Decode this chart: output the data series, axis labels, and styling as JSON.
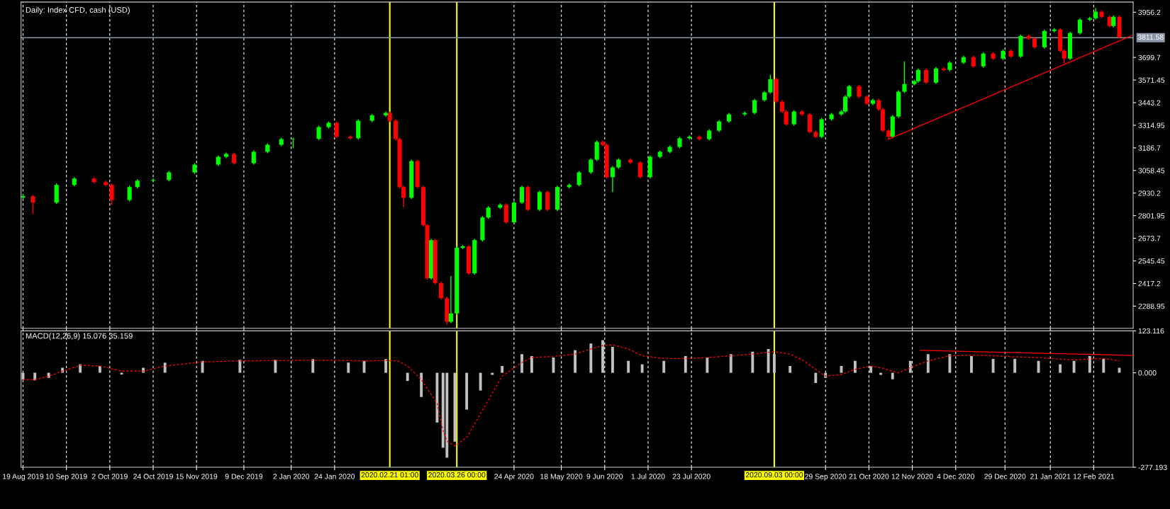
{
  "chart_data": [
    {
      "type": "candlestick",
      "title": "Daily: Index CFD, cash (USD)",
      "x": [
        "2019-08-19",
        "2019-08-24",
        "2019-09-05",
        "2019-09-14",
        "2019-09-24",
        "2019-09-30",
        "2019-10-03",
        "2019-10-12",
        "2019-10-16",
        "2019-10-24",
        "2019-11-01",
        "2019-11-14",
        "2019-11-26",
        "2019-11-30",
        "2019-12-04",
        "2019-12-14",
        "2019-12-21",
        "2019-12-28",
        "2020-01-03",
        "2020-01-16",
        "2020-01-21",
        "2020-01-25",
        "2020-02-01",
        "2020-02-05",
        "2020-02-12",
        "2020-02-19",
        "2020-02-21",
        "2020-02-24",
        "2020-02-26",
        "2020-02-28",
        "2020-03-03",
        "2020-03-06",
        "2020-03-09",
        "2020-03-11",
        "2020-03-13",
        "2020-03-15",
        "2020-03-18",
        "2020-03-21",
        "2020-03-23",
        "2020-03-26",
        "2020-03-29",
        "2020-04-01",
        "2020-04-04",
        "2020-04-08",
        "2020-04-11",
        "2020-04-17",
        "2020-04-20",
        "2020-04-24",
        "2020-04-28",
        "2020-05-01",
        "2020-05-07",
        "2020-05-11",
        "2020-05-16",
        "2020-05-22",
        "2020-05-27",
        "2020-06-02",
        "2020-06-05",
        "2020-06-08",
        "2020-06-10",
        "2020-06-13",
        "2020-06-16",
        "2020-06-22",
        "2020-06-27",
        "2020-07-02",
        "2020-07-07",
        "2020-07-12",
        "2020-07-17",
        "2020-07-22",
        "2020-07-27",
        "2020-08-01",
        "2020-08-06",
        "2020-08-11",
        "2020-08-19",
        "2020-08-24",
        "2020-08-29",
        "2020-09-01",
        "2020-09-04",
        "2020-09-07",
        "2020-09-09",
        "2020-09-13",
        "2020-09-17",
        "2020-09-21",
        "2020-09-24",
        "2020-09-27",
        "2020-10-02",
        "2020-10-07",
        "2020-10-09",
        "2020-10-11",
        "2020-10-16",
        "2020-10-20",
        "2020-10-23",
        "2020-10-26",
        "2020-10-28",
        "2020-10-31",
        "2020-11-02",
        "2020-11-05",
        "2020-11-08",
        "2020-11-13",
        "2020-11-15",
        "2020-11-19",
        "2020-11-24",
        "2020-11-28",
        "2020-12-01",
        "2020-12-08",
        "2020-12-13",
        "2020-12-18",
        "2020-12-23",
        "2020-12-28",
        "2021-01-01",
        "2021-01-06",
        "2021-01-10",
        "2021-01-13",
        "2021-01-18",
        "2021-01-23",
        "2021-01-26",
        "2021-01-28",
        "2021-01-31",
        "2021-02-05",
        "2021-02-10",
        "2021-02-13",
        "2021-02-16",
        "2021-02-20",
        "2021-02-22",
        "2021-02-25"
      ],
      "ohlc": [
        [
          2905,
          2925,
          2895,
          2912
        ],
        [
          2912,
          2920,
          2812,
          2876
        ],
        [
          2876,
          2985,
          2868,
          2976
        ],
        [
          2976,
          3020,
          2968,
          3012
        ],
        [
          3012,
          3020,
          2984,
          2992
        ],
        [
          2992,
          3000,
          2968,
          2976
        ],
        [
          2976,
          2984,
          2862,
          2891
        ],
        [
          2891,
          2972,
          2883,
          2964
        ],
        [
          2964,
          3008,
          2956,
          3000
        ],
        [
          3000,
          3012,
          2992,
          3004
        ],
        [
          3004,
          3056,
          2996,
          3048
        ],
        [
          3048,
          3100,
          3040,
          3092
        ],
        [
          3092,
          3144,
          3084,
          3136
        ],
        [
          3136,
          3160,
          3128,
          3152
        ],
        [
          3152,
          3160,
          3092,
          3100
        ],
        [
          3100,
          3172,
          3092,
          3164
        ],
        [
          3164,
          3212,
          3156,
          3204
        ],
        [
          3204,
          3244,
          3196,
          3236
        ],
        [
          3236,
          3244,
          3185,
          3238
        ],
        [
          3238,
          3313,
          3230,
          3305
        ],
        [
          3305,
          3337,
          3297,
          3329
        ],
        [
          3329,
          3337,
          3241,
          3249
        ],
        [
          3249,
          3257,
          3233,
          3241
        ],
        [
          3241,
          3349,
          3233,
          3341
        ],
        [
          3341,
          3379,
          3333,
          3371
        ],
        [
          3371,
          3393,
          3363,
          3385
        ],
        [
          3385,
          3393,
          3333,
          3341
        ],
        [
          3341,
          3349,
          3228,
          3236
        ],
        [
          3236,
          3244,
          2956,
          2964
        ],
        [
          2964,
          2972,
          2850,
          2904
        ],
        [
          2904,
          3120,
          2896,
          3112
        ],
        [
          3112,
          3120,
          2956,
          2964
        ],
        [
          2964,
          2972,
          2740,
          2748
        ],
        [
          2748,
          2756,
          2439,
          2447
        ],
        [
          2447,
          2671,
          2439,
          2663
        ],
        [
          2663,
          2671,
          2412,
          2420
        ],
        [
          2420,
          2428,
          2326,
          2334
        ],
        [
          2334,
          2342,
          2185,
          2200
        ],
        [
          2200,
          2460,
          2192,
          2247
        ],
        [
          2247,
          2628,
          2239,
          2620
        ],
        [
          2620,
          2636,
          2612,
          2628
        ],
        [
          2628,
          2636,
          2467,
          2475
        ],
        [
          2475,
          2671,
          2467,
          2663
        ],
        [
          2663,
          2800,
          2655,
          2792
        ],
        [
          2792,
          2856,
          2784,
          2848
        ],
        [
          2848,
          2872,
          2840,
          2864
        ],
        [
          2864,
          2872,
          2756,
          2764
        ],
        [
          2764,
          2884,
          2756,
          2876
        ],
        [
          2876,
          2972,
          2868,
          2964
        ],
        [
          2964,
          2972,
          2828,
          2836
        ],
        [
          2836,
          2944,
          2828,
          2936
        ],
        [
          2936,
          2944,
          2828,
          2836
        ],
        [
          2836,
          2972,
          2828,
          2964
        ],
        [
          2964,
          2984,
          2956,
          2976
        ],
        [
          2976,
          3056,
          2968,
          3048
        ],
        [
          3048,
          3128,
          3040,
          3120
        ],
        [
          3120,
          3228,
          3112,
          3220
        ],
        [
          3220,
          3228,
          3196,
          3204
        ],
        [
          3204,
          3212,
          3012,
          3020
        ],
        [
          3020,
          3084,
          2936,
          3076
        ],
        [
          3076,
          3128,
          3068,
          3120
        ],
        [
          3120,
          3128,
          3096,
          3104
        ],
        [
          3104,
          3112,
          3012,
          3020
        ],
        [
          3020,
          3144,
          3012,
          3136
        ],
        [
          3136,
          3172,
          3128,
          3164
        ],
        [
          3164,
          3200,
          3156,
          3192
        ],
        [
          3192,
          3249,
          3184,
          3241
        ],
        [
          3241,
          3257,
          3233,
          3249
        ],
        [
          3249,
          3257,
          3228,
          3236
        ],
        [
          3236,
          3293,
          3228,
          3285
        ],
        [
          3285,
          3345,
          3277,
          3337
        ],
        [
          3337,
          3385,
          3329,
          3377
        ],
        [
          3377,
          3393,
          3369,
          3385
        ],
        [
          3385,
          3465,
          3377,
          3457
        ],
        [
          3457,
          3509,
          3449,
          3501
        ],
        [
          3501,
          3601,
          3493,
          3577
        ],
        [
          3577,
          3585,
          3441,
          3449
        ],
        [
          3449,
          3457,
          3385,
          3393
        ],
        [
          3393,
          3401,
          3313,
          3321
        ],
        [
          3321,
          3401,
          3313,
          3393
        ],
        [
          3393,
          3401,
          3369,
          3377
        ],
        [
          3377,
          3385,
          3269,
          3277
        ],
        [
          3277,
          3285,
          3241,
          3249
        ],
        [
          3249,
          3357,
          3241,
          3349
        ],
        [
          3349,
          3385,
          3341,
          3377
        ],
        [
          3377,
          3401,
          3369,
          3393
        ],
        [
          3393,
          3485,
          3385,
          3477
        ],
        [
          3477,
          3545,
          3469,
          3537
        ],
        [
          3537,
          3545,
          3469,
          3477
        ],
        [
          3477,
          3485,
          3429,
          3437
        ],
        [
          3437,
          3465,
          3429,
          3457
        ],
        [
          3457,
          3465,
          3397,
          3405
        ],
        [
          3405,
          3413,
          3277,
          3285
        ],
        [
          3285,
          3293,
          3236,
          3249
        ],
        [
          3249,
          3373,
          3241,
          3365
        ],
        [
          3365,
          3513,
          3357,
          3505
        ],
        [
          3505,
          3677,
          3497,
          3549
        ],
        [
          3549,
          3573,
          3541,
          3565
        ],
        [
          3565,
          3637,
          3557,
          3629
        ],
        [
          3629,
          3637,
          3549,
          3557
        ],
        [
          3557,
          3645,
          3549,
          3637
        ],
        [
          3637,
          3645,
          3621,
          3629
        ],
        [
          3629,
          3678,
          3621,
          3670
        ],
        [
          3670,
          3709,
          3662,
          3701
        ],
        [
          3701,
          3709,
          3641,
          3649
        ],
        [
          3649,
          3729,
          3641,
          3721
        ],
        [
          3721,
          3729,
          3685,
          3693
        ],
        [
          3693,
          3745,
          3685,
          3737
        ],
        [
          3737,
          3745,
          3697,
          3705
        ],
        [
          3705,
          3830,
          3697,
          3822
        ],
        [
          3822,
          3830,
          3799,
          3807
        ],
        [
          3807,
          3815,
          3749,
          3757
        ],
        [
          3757,
          3858,
          3749,
          3850
        ],
        [
          3850,
          3866,
          3842,
          3858
        ],
        [
          3858,
          3866,
          3729,
          3737
        ],
        [
          3737,
          3745,
          3665,
          3693
        ],
        [
          3693,
          3846,
          3685,
          3838
        ],
        [
          3838,
          3922,
          3830,
          3914
        ],
        [
          3914,
          3930,
          3906,
          3922
        ],
        [
          3922,
          3980,
          3914,
          3958
        ],
        [
          3958,
          3966,
          3922,
          3930
        ],
        [
          3930,
          3938,
          3870,
          3878
        ],
        [
          3878,
          3938,
          3870,
          3930
        ],
        [
          3930,
          3938,
          3806,
          3814
        ]
      ],
      "colors": [
        "#00ff00",
        "#ff0000",
        "#00ff00",
        "#00ff00",
        "#ff0000",
        "#ff0000",
        "#ff0000",
        "#00ff00",
        "#00ff00",
        "#00ff00",
        "#00ff00",
        "#00ff00",
        "#00ff00",
        "#00ff00",
        "#ff0000",
        "#00ff00",
        "#00ff00",
        "#00ff00",
        "#00ff00",
        "#00ff00",
        "#00ff00",
        "#ff0000",
        "#ff0000",
        "#00ff00",
        "#00ff00",
        "#00ff00",
        "#ff0000",
        "#ff0000",
        "#ff0000",
        "#ff0000",
        "#00ff00",
        "#ff0000",
        "#ff0000",
        "#ff0000",
        "#00ff00",
        "#ff0000",
        "#ff0000",
        "#ff0000",
        "#00ff00",
        "#00ff00",
        "#00ff00",
        "#ff0000",
        "#00ff00",
        "#00ff00",
        "#00ff00",
        "#00ff00",
        "#ff0000",
        "#00ff00",
        "#00ff00",
        "#ff0000",
        "#00ff00",
        "#ff0000",
        "#00ff00",
        "#00ff00",
        "#00ff00",
        "#00ff00",
        "#00ff00",
        "#ff0000",
        "#ff0000",
        "#00ff00",
        "#00ff00",
        "#ff0000",
        "#ff0000",
        "#00ff00",
        "#00ff00",
        "#00ff00",
        "#00ff00",
        "#00ff00",
        "#ff0000",
        "#00ff00",
        "#00ff00",
        "#00ff00",
        "#00ff00",
        "#00ff00",
        "#00ff00",
        "#00ff00",
        "#ff0000",
        "#ff0000",
        "#ff0000",
        "#00ff00",
        "#ff0000",
        "#ff0000",
        "#ff0000",
        "#00ff00",
        "#00ff00",
        "#00ff00",
        "#00ff00",
        "#00ff00",
        "#ff0000",
        "#ff0000",
        "#00ff00",
        "#ff0000",
        "#ff0000",
        "#ff0000",
        "#00ff00",
        "#00ff00",
        "#00ff00",
        "#00ff00",
        "#00ff00",
        "#ff0000",
        "#00ff00",
        "#ff0000",
        "#00ff00",
        "#00ff00",
        "#ff0000",
        "#00ff00",
        "#ff0000",
        "#00ff00",
        "#ff0000",
        "#00ff00",
        "#ff0000",
        "#ff0000",
        "#00ff00",
        "#00ff00",
        "#ff0000",
        "#ff0000",
        "#00ff00",
        "#00ff00",
        "#00ff00",
        "#00ff00",
        "#ff0000",
        "#ff0000",
        "#00ff00",
        "#ff0000"
      ],
      "series": [
        {
          "type": "line",
          "color": "#ff0000",
          "line_style": "solid",
          "x": [
            "2020-10-31",
            "2021-03-03"
          ],
          "values": [
            3236,
            3822
          ]
        }
      ],
      "xlim": [
        "2019-08-18",
        "2021-03-04"
      ],
      "ylim": [
        2163,
        4014
      ],
      "yticks": [
        2288.95,
        2417.2,
        2545.45,
        2673.7,
        2801.95,
        2930.2,
        3058.45,
        3186.7,
        3314.95,
        3443.2,
        3571.45,
        3699.7,
        3956.2
      ],
      "xticks": [
        "2019-08-19",
        "2019-09-10",
        "2019-10-02",
        "2019-10-24",
        "2019-11-15",
        "2019-12-09",
        "2020-01-02",
        "2020-01-24",
        "2020-04-24",
        "2020-05-18",
        "2020-06-09",
        "2020-07-01",
        "2020-07-23",
        "2020-09-29",
        "2020-10-21",
        "2020-11-12",
        "2020-12-04",
        "2020-12-29",
        "2021-01-21",
        "2021-02-12"
      ],
      "tick_labels": "y",
      "grid": "x",
      "ref_lines": [
        {
          "axis": "x",
          "value": "2020-02-21",
          "color": "#ffff00"
        },
        {
          "axis": "x",
          "value": "2020-03-26",
          "color": "#ffff00"
        },
        {
          "axis": "x",
          "value": "2020-09-03",
          "color": "#ffff00"
        },
        {
          "axis": "y",
          "value": 3811.58,
          "label": "3811.58",
          "color": "#8a96a8"
        }
      ]
    },
    {
      "type": "bar",
      "title": "MACD(12,26,9) 15.076 35.159",
      "x": [
        "2019-08-19",
        "2019-08-25",
        "2019-09-01",
        "2019-09-08",
        "2019-09-17",
        "2019-09-27",
        "2019-10-08",
        "2019-10-19",
        "2019-10-30",
        "2019-11-18",
        "2019-12-07",
        "2019-12-25",
        "2020-01-13",
        "2020-01-31",
        "2020-02-08",
        "2020-02-19",
        "2020-02-25",
        "2020-03-01",
        "2020-03-08",
        "2020-03-16",
        "2020-03-19",
        "2020-03-21",
        "2020-03-25",
        "2020-03-31",
        "2020-04-07",
        "2020-04-13",
        "2020-04-18",
        "2020-04-28",
        "2020-05-03",
        "2020-05-14",
        "2020-05-25",
        "2020-06-02",
        "2020-06-08",
        "2020-06-13",
        "2020-06-21",
        "2020-06-28",
        "2020-07-09",
        "2020-07-20",
        "2020-07-31",
        "2020-08-12",
        "2020-08-23",
        "2020-08-31",
        "2020-09-03",
        "2020-09-11",
        "2020-09-18",
        "2020-09-24",
        "2020-09-29",
        "2020-10-07",
        "2020-10-14",
        "2020-10-22",
        "2020-10-27",
        "2020-11-02",
        "2020-11-05",
        "2020-11-11",
        "2020-11-20",
        "2020-12-01",
        "2020-12-12",
        "2020-12-23",
        "2021-01-03",
        "2021-01-15",
        "2021-01-26",
        "2021-02-02",
        "2021-02-10",
        "2021-02-17",
        "2021-02-25"
      ],
      "series": [
        {
          "type": "bar",
          "color": "#c0c0c0",
          "values": [
            -20,
            -22,
            -15,
            15,
            25,
            20,
            -5,
            15,
            30,
            35,
            38,
            38,
            40,
            30,
            35,
            40,
            0,
            -24,
            -71,
            -146,
            -220,
            -249,
            -202,
            -108,
            -52,
            -6,
            20,
            55,
            49,
            45,
            66,
            86,
            96,
            76,
            35,
            25,
            35,
            49,
            45,
            55,
            62,
            70,
            55,
            20,
            0,
            -30,
            -15,
            20,
            35,
            20,
            -6,
            -19,
            0,
            35,
            55,
            55,
            49,
            41,
            41,
            35,
            25,
            35,
            49,
            41,
            15
          ]
        },
        {
          "type": "line",
          "color": "#ff0000",
          "line_style": "dashed",
          "values": [
            -20,
            -20,
            -10,
            5,
            22,
            20,
            5,
            5,
            20,
            32,
            35,
            36,
            37,
            36,
            35,
            36,
            35,
            20,
            -20,
            -90,
            -170,
            -200,
            -215,
            -190,
            -120,
            -60,
            -10,
            30,
            45,
            48,
            55,
            70,
            80,
            82,
            70,
            50,
            42,
            42,
            45,
            50,
            55,
            60,
            62,
            55,
            35,
            10,
            -10,
            -5,
            10,
            20,
            15,
            5,
            0,
            15,
            35,
            50,
            52,
            50,
            47,
            45,
            40,
            38,
            40,
            42,
            35
          ]
        },
        {
          "type": "line",
          "color": "#ff0000",
          "line_style": "solid",
          "x": [
            "2020-11-16",
            "2021-03-04"
          ],
          "values": [
            66,
            51
          ]
        }
      ],
      "xlim": [
        "2019-08-18",
        "2021-03-04"
      ],
      "ylim": [
        -277.193,
        123.116
      ],
      "yticks": [
        {
          "value": -277.193,
          "label": "-277.193"
        },
        {
          "value": 0,
          "label": "0.000"
        },
        {
          "value": 123.116,
          "label": "123.116"
        }
      ],
      "xticks": [
        {
          "value": "2019-08-19",
          "label": "19 Aug 2019"
        },
        {
          "value": "2019-09-10",
          "label": "10 Sep 2019"
        },
        {
          "value": "2019-10-02",
          "label": "2 Oct 2019"
        },
        {
          "value": "2019-10-24",
          "label": "24 Oct 2019"
        },
        {
          "value": "2019-11-15",
          "label": "15 Nov 2019"
        },
        {
          "value": "2019-12-09",
          "label": "9 Dec 2019"
        },
        {
          "value": "2020-01-02",
          "label": "2 Jan 2020"
        },
        {
          "value": "2020-01-24",
          "label": "24 Jan 2020"
        },
        {
          "value": "2020-04-24",
          "label": "24 Apr 2020"
        },
        {
          "value": "2020-05-18",
          "label": "18 May 2020"
        },
        {
          "value": "2020-06-09",
          "label": "9 Jun 2020"
        },
        {
          "value": "2020-07-01",
          "label": "1 Jul 2020"
        },
        {
          "value": "2020-07-23",
          "label": "23 Jul 2020"
        },
        {
          "value": "2020-09-29",
          "label": "29 Sep 2020"
        },
        {
          "value": "2020-10-21",
          "label": "21 Oct 2020"
        },
        {
          "value": "2020-11-12",
          "label": "12 Nov 2020"
        },
        {
          "value": "2020-12-04",
          "label": "4 Dec 2020"
        },
        {
          "value": "2020-12-29",
          "label": "29 Dec 2020"
        },
        {
          "value": "2021-01-21",
          "label": "21 Jan 2021"
        },
        {
          "value": "2021-02-12",
          "label": "12 Feb 2021"
        }
      ],
      "grid": "x",
      "ref_lines": [
        {
          "axis": "x",
          "value": "2020-02-21",
          "label": "2020.02.21 01:00",
          "color": "#ffff00"
        },
        {
          "axis": "x",
          "value": "2020-03-26",
          "label": "2020.03.26 00:00",
          "color": "#ffff00"
        },
        {
          "axis": "x",
          "value": "2020-09-03",
          "label": "2020.09.03 00:00",
          "color": "#ffff00"
        }
      ]
    }
  ]
}
